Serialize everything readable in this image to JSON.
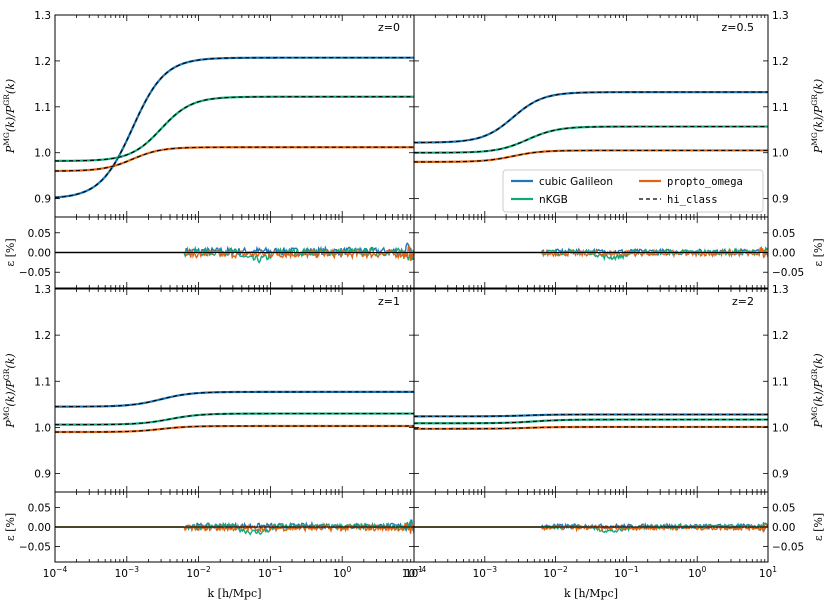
{
  "colors": {
    "cubic_galileon": "#1f77b4",
    "nkgb": "#17a67a",
    "propto_omega": "#e06413",
    "hi_class": "#000000"
  },
  "labels": {
    "ylabel_top": "P_m^MG(k)/P_m^GR(k)",
    "ylabel_err": "ε [%]",
    "xlabel": "k [h/Mpc]"
  },
  "chart_data": {
    "type": "line",
    "x_scale": "log",
    "xlim": [
      0.0001,
      10
    ],
    "x_ticks": [
      "10^-4",
      "10^-3",
      "10^-2",
      "10^-1",
      "10^0",
      "10^1"
    ],
    "xlabel": "k [h/Mpc]",
    "ratio_ylim": [
      0.86,
      1.3
    ],
    "ratio_yticks": [
      "0.9",
      "1.0",
      "1.1",
      "1.2",
      "1.3"
    ],
    "error_ylim": [
      -0.09,
      0.09
    ],
    "error_yticks": [
      "0.05",
      "0.00",
      "−0.05"
    ],
    "legend": {
      "position": "lower-right of z=0.5 panel",
      "entries": [
        {
          "key": "cubic_galileon",
          "label": "cubic Galileon",
          "style": "solid"
        },
        {
          "key": "propto_omega",
          "label": "propto_omega",
          "style": "solid"
        },
        {
          "key": "nkgb",
          "label": "nKGB",
          "style": "solid"
        },
        {
          "key": "hi_class",
          "label": "hi_class",
          "style": "dashed"
        }
      ]
    },
    "panels": [
      {
        "z": "z=0",
        "series": [
          {
            "model": "cubic_galileon",
            "low_k": 0.9,
            "high_k": 1.207,
            "k_transition": 0.0012,
            "width_decades": 0.9
          },
          {
            "model": "nkgb",
            "low_k": 0.982,
            "high_k": 1.122,
            "k_transition": 0.003,
            "width_decades": 0.85
          },
          {
            "model": "propto_omega",
            "low_k": 0.96,
            "high_k": 1.012,
            "k_transition": 0.0012,
            "width_decades": 0.8
          }
        ],
        "error_amplitude": 0.012
      },
      {
        "z": "z=0.5",
        "series": [
          {
            "model": "cubic_galileon",
            "low_k": 1.022,
            "high_k": 1.132,
            "k_transition": 0.0025,
            "width_decades": 0.85
          },
          {
            "model": "nkgb",
            "low_k": 1.0,
            "high_k": 1.057,
            "k_transition": 0.004,
            "width_decades": 0.85
          },
          {
            "model": "propto_omega",
            "low_k": 0.98,
            "high_k": 1.005,
            "k_transition": 0.0025,
            "width_decades": 0.8
          }
        ],
        "error_amplitude": 0.008
      },
      {
        "z": "z=1",
        "series": [
          {
            "model": "cubic_galileon",
            "low_k": 1.045,
            "high_k": 1.077,
            "k_transition": 0.003,
            "width_decades": 0.85
          },
          {
            "model": "nkgb",
            "low_k": 1.006,
            "high_k": 1.03,
            "k_transition": 0.004,
            "width_decades": 0.85
          },
          {
            "model": "propto_omega",
            "low_k": 0.99,
            "high_k": 1.003,
            "k_transition": 0.003,
            "width_decades": 0.8
          }
        ],
        "error_amplitude": 0.009
      },
      {
        "z": "z=2",
        "series": [
          {
            "model": "cubic_galileon",
            "low_k": 1.024,
            "high_k": 1.028,
            "k_transition": 0.004,
            "width_decades": 0.8
          },
          {
            "model": "nkgb",
            "low_k": 1.009,
            "high_k": 1.017,
            "k_transition": 0.005,
            "width_decades": 0.85
          },
          {
            "model": "propto_omega",
            "low_k": 0.997,
            "high_k": 1.001,
            "k_transition": 0.004,
            "width_decades": 0.8
          }
        ],
        "error_amplitude": 0.007
      }
    ]
  }
}
